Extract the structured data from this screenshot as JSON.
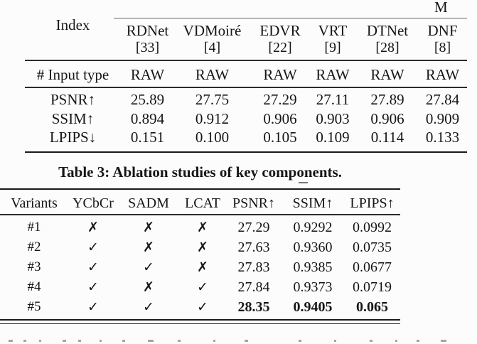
{
  "table1": {
    "methods_header_clipped": "M",
    "index_label": "Index",
    "columns": [
      {
        "name": "RDNet",
        "cite": "[33]"
      },
      {
        "name": "VDMoiré",
        "cite": "[4]"
      },
      {
        "name": "EDVR",
        "cite": "[22]"
      },
      {
        "name": "VRT",
        "cite": "[9]"
      },
      {
        "name": "DTNet",
        "cite": "[28]"
      },
      {
        "name": "DNF",
        "cite": "[8]"
      }
    ],
    "input_type_row": {
      "label": "# Input type",
      "values": [
        "RAW",
        "RAW",
        "RAW",
        "RAW",
        "RAW",
        "RAW"
      ]
    },
    "metric_rows": [
      {
        "label": "PSNR↑",
        "values": [
          "25.89",
          "27.75",
          "27.29",
          "27.11",
          "27.89",
          "27.84"
        ]
      },
      {
        "label": "SSIM↑",
        "values": [
          "0.894",
          "0.912",
          "0.906",
          "0.903",
          "0.906",
          "0.909"
        ]
      },
      {
        "label": "LPIPS↓",
        "values": [
          "0.151",
          "0.100",
          "0.105",
          "0.109",
          "0.114",
          "0.133"
        ]
      }
    ]
  },
  "caption": "Table 3: Ablation studies of key components.",
  "table2": {
    "headers": [
      "Variants",
      "YCbCr",
      "SADM",
      "LCAT",
      "PSNR↑",
      "SSIM↑",
      "LPIPS↑"
    ],
    "check_glyph": "✓",
    "cross_glyph": "✗",
    "rows": [
      {
        "variant": "#1",
        "ycbcr": false,
        "sadm": false,
        "lcat": false,
        "psnr": "27.29",
        "ssim": "0.9292",
        "lpips": "0.0992",
        "bold": false
      },
      {
        "variant": "#2",
        "ycbcr": true,
        "sadm": false,
        "lcat": false,
        "psnr": "27.63",
        "ssim": "0.9360",
        "lpips": "0.0735",
        "bold": false
      },
      {
        "variant": "#3",
        "ycbcr": true,
        "sadm": true,
        "lcat": false,
        "psnr": "27.83",
        "ssim": "0.9385",
        "lpips": "0.0677",
        "bold": false
      },
      {
        "variant": "#4",
        "ycbcr": true,
        "sadm": false,
        "lcat": true,
        "psnr": "27.84",
        "ssim": "0.9373",
        "lpips": "0.0719",
        "bold": false
      },
      {
        "variant": "#5",
        "ycbcr": true,
        "sadm": true,
        "lcat": true,
        "psnr": "28.35",
        "ssim": "0.9405",
        "lpips": "0.065",
        "bold": true
      }
    ]
  }
}
